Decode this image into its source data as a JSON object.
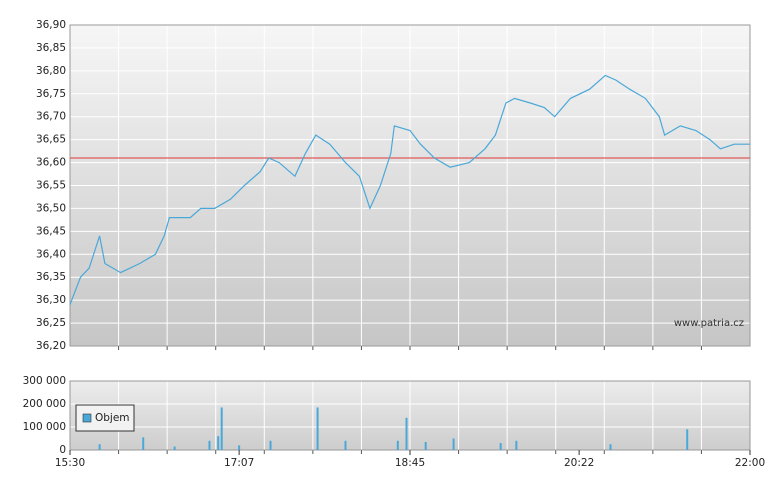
{
  "chart_data": [
    {
      "type": "line",
      "x": [
        "15:30",
        "15:36",
        "15:41",
        "15:47",
        "15:50",
        "15:59",
        "16:10",
        "16:19",
        "16:24",
        "16:27",
        "16:39",
        "16:45",
        "16:53",
        "17:02",
        "17:10",
        "17:19",
        "17:24",
        "17:30",
        "17:39",
        "17:45",
        "17:51",
        "17:59",
        "18:08",
        "18:16",
        "18:22",
        "18:28",
        "18:34",
        "18:36",
        "18:45",
        "18:51",
        "18:59",
        "19:08",
        "19:19",
        "19:28",
        "19:34",
        "19:40",
        "19:45",
        "19:54",
        "20:02",
        "20:08",
        "20:17",
        "20:28",
        "20:37",
        "20:43",
        "20:51",
        "21:00",
        "21:08",
        "21:11",
        "21:20",
        "21:29",
        "21:37",
        "21:43",
        "21:51",
        "22:00"
      ],
      "values": [
        36.29,
        36.35,
        36.37,
        36.44,
        36.38,
        36.36,
        36.38,
        36.4,
        36.44,
        36.48,
        36.48,
        36.5,
        36.5,
        36.52,
        36.55,
        36.58,
        36.61,
        36.6,
        36.57,
        36.62,
        36.66,
        36.64,
        36.6,
        36.57,
        36.5,
        36.55,
        36.62,
        36.68,
        36.67,
        36.64,
        36.61,
        36.59,
        36.6,
        36.63,
        36.66,
        36.73,
        36.74,
        36.73,
        36.72,
        36.7,
        36.74,
        36.76,
        36.79,
        36.78,
        36.76,
        36.74,
        36.7,
        36.66,
        36.68,
        36.67,
        36.65,
        36.63,
        36.64,
        36.64
      ],
      "color": "#4aa8d8",
      "xlim": [
        "15:30",
        "22:00"
      ],
      "ylim": [
        36.2,
        36.9
      ],
      "yticks": [
        {
          "value": 36.2,
          "label": "36,20"
        },
        {
          "value": 36.25,
          "label": "36,25"
        },
        {
          "value": 36.3,
          "label": "36,30"
        },
        {
          "value": 36.35,
          "label": "36,35"
        },
        {
          "value": 36.4,
          "label": "36,40"
        },
        {
          "value": 36.45,
          "label": "36,45"
        },
        {
          "value": 36.5,
          "label": "36,50"
        },
        {
          "value": 36.55,
          "label": "36,55"
        },
        {
          "value": 36.6,
          "label": "36,60"
        },
        {
          "value": 36.65,
          "label": "36,65"
        },
        {
          "value": 36.7,
          "label": "36,70"
        },
        {
          "value": 36.75,
          "label": "36,75"
        },
        {
          "value": 36.8,
          "label": "36,80"
        },
        {
          "value": 36.85,
          "label": "36,85"
        },
        {
          "value": 36.9,
          "label": "36,90"
        }
      ],
      "reference_line": {
        "value": 36.61,
        "color": "#e05a5a"
      },
      "watermark": "www.patria.cz",
      "grid": true
    },
    {
      "type": "bar",
      "x": [
        "15:47",
        "16:12",
        "16:30",
        "16:50",
        "16:55",
        "16:57",
        "17:07",
        "17:25",
        "17:52",
        "18:08",
        "18:38",
        "18:43",
        "18:54",
        "19:10",
        "19:37",
        "19:46",
        "20:40",
        "21:24"
      ],
      "series": [
        {
          "name": "Objem",
          "color": "#4aa8d8",
          "values": [
            25000,
            55000,
            15000,
            40000,
            60000,
            185000,
            20000,
            40000,
            185000,
            40000,
            40000,
            140000,
            35000,
            50000,
            30000,
            40000,
            25000,
            90000
          ]
        }
      ],
      "xlim": [
        "15:30",
        "22:00"
      ],
      "xticks": [
        "15:30",
        "17:07",
        "18:45",
        "20:22",
        "22:00"
      ],
      "ylim": [
        0,
        300000
      ],
      "yticks": [
        0,
        {
          "value": 100000,
          "label": "100 000"
        },
        {
          "value": 200000,
          "label": "200 000"
        },
        {
          "value": 300000,
          "label": "300 000"
        }
      ],
      "legend": "upper left",
      "grid": true
    }
  ]
}
